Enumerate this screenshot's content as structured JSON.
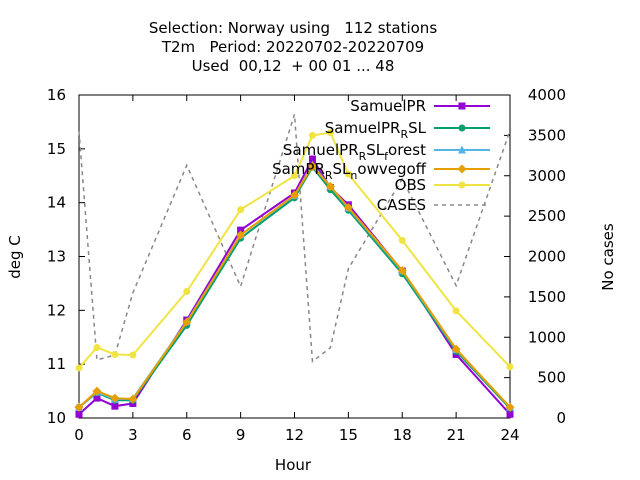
{
  "chart_data": {
    "type": "line",
    "title_lines": [
      "Selection: Norway using   112 stations",
      "T2m   Period: 20220702-20220709",
      "Used  00,12  + 00 01 ... 48"
    ],
    "xlabel": "Hour",
    "ylabel": "deg C",
    "y2label": "No cases",
    "xlim": [
      0,
      24
    ],
    "ylim": [
      10,
      16
    ],
    "y2lim": [
      0,
      4000
    ],
    "xticks": [
      0,
      3,
      6,
      9,
      12,
      15,
      18,
      21,
      24
    ],
    "yticks": [
      10,
      11,
      12,
      13,
      14,
      15,
      16
    ],
    "y2ticks": [
      0,
      500,
      1000,
      1500,
      2000,
      2500,
      3000,
      3500,
      4000
    ],
    "grid": false,
    "legend_position": "top-right",
    "x": [
      0,
      1,
      2,
      3,
      6,
      9,
      12,
      13,
      14,
      15,
      18,
      21,
      24
    ],
    "series": [
      {
        "name": "SamuelPR",
        "color": "#9400d3",
        "marker": "square",
        "values": [
          10.07,
          10.37,
          10.22,
          10.27,
          11.82,
          13.49,
          14.18,
          14.81,
          14.28,
          13.96,
          12.73,
          11.18,
          10.07
        ]
      },
      {
        "name": "SamuelPR_R SL",
        "color": "#009e73",
        "marker": "circle",
        "values": [
          10.2,
          10.47,
          10.33,
          10.33,
          11.72,
          13.34,
          14.09,
          14.66,
          14.24,
          13.86,
          12.68,
          11.24,
          10.18
        ]
      },
      {
        "name": "SamuelPR_R SL_forest",
        "color": "#56b4e9",
        "marker": "triangle",
        "values": [
          10.2,
          10.48,
          10.35,
          10.36,
          11.79,
          13.4,
          14.13,
          14.7,
          14.3,
          13.9,
          12.73,
          11.27,
          10.2
        ]
      },
      {
        "name": "SamPR_R SL_nowvegoff",
        "color": "#e69f00",
        "marker": "diamond",
        "values": [
          10.2,
          10.5,
          10.37,
          10.35,
          11.78,
          13.4,
          14.14,
          14.68,
          14.3,
          13.91,
          12.74,
          11.28,
          10.2
        ]
      },
      {
        "name": "OBS",
        "color": "#f0e442",
        "marker": "circle",
        "values": [
          10.93,
          11.31,
          11.18,
          11.17,
          12.35,
          13.87,
          14.5,
          15.25,
          15.3,
          14.53,
          13.3,
          11.99,
          10.95
        ]
      },
      {
        "name": "CASES",
        "color": "#888888",
        "marker": "none",
        "axis": "y2",
        "values": [
          3550,
          720,
          780,
          1550,
          3130,
          1630,
          3760,
          700,
          870,
          1850,
          2960,
          1640,
          3560
        ]
      }
    ]
  }
}
